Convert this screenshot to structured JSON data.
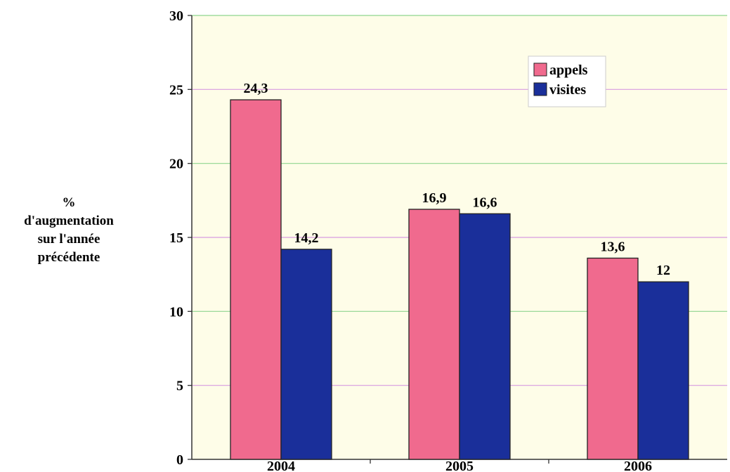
{
  "chart_data": {
    "type": "bar",
    "categories": [
      "2004",
      "2005",
      "2006"
    ],
    "series": [
      {
        "name": "appels",
        "values": [
          24.3,
          16.9,
          13.6
        ],
        "labels": [
          "24,3",
          "16,9",
          "13,6"
        ],
        "color": "#f06a8e"
      },
      {
        "name": "visites",
        "values": [
          14.2,
          16.6,
          12
        ],
        "labels": [
          "14,2",
          "16,6",
          "12"
        ],
        "color": "#1a2f9a"
      }
    ],
    "ylabel_lines": [
      "%",
      "d'augmentation",
      "sur l'année",
      "précédente"
    ],
    "ylim": [
      0,
      30
    ],
    "yticks": [
      0,
      5,
      10,
      15,
      20,
      25,
      30
    ],
    "legend_position": "top-right",
    "plot_background": "#fefde8",
    "grid": true,
    "grid_colors": [
      "#8fd58f",
      "#d89be0"
    ]
  }
}
